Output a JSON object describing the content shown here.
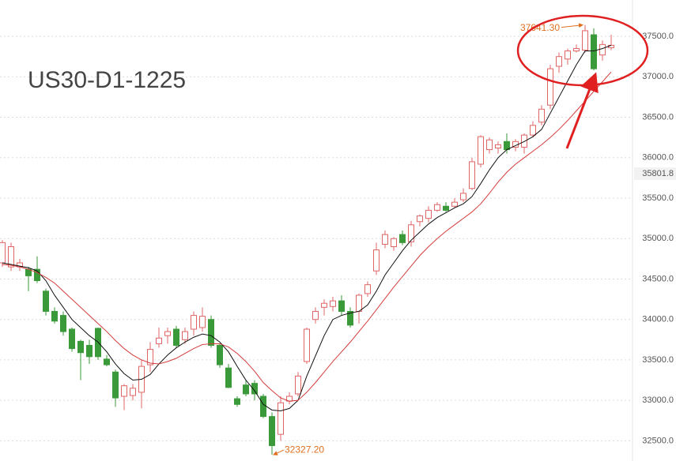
{
  "chart_data": {
    "type": "candlestick",
    "title": "US30-D1-1225",
    "ylim": [
      32250,
      37950
    ],
    "yticks": [
      {
        "value": 32500,
        "label": "32500.0"
      },
      {
        "value": 33000,
        "label": "33000.0"
      },
      {
        "value": 33500,
        "label": "33500.0"
      },
      {
        "value": 34000,
        "label": "34000.0"
      },
      {
        "value": 34500,
        "label": "34500.0"
      },
      {
        "value": 35000,
        "label": "35000.0"
      },
      {
        "value": 35500,
        "label": "35500.0"
      },
      {
        "value": 36000,
        "label": "36000.0"
      },
      {
        "value": 36500,
        "label": "36500.0"
      },
      {
        "value": 37000,
        "label": "37000.0"
      },
      {
        "value": 37500,
        "label": "37500.0"
      }
    ],
    "grid": true,
    "price_marker": {
      "value": 35801.8,
      "label": "35801.8"
    },
    "high_label": "37641.30",
    "low_label": "32327.20",
    "up_color": "#e06666",
    "down_color": "#3a9a3a",
    "candles": {
      "open": [
        34700,
        34650,
        34650,
        34620,
        34620,
        34350,
        34100,
        34050,
        33880,
        33730,
        33680,
        33890,
        33510,
        33350,
        33050,
        33060,
        33100,
        33440,
        33700,
        33800,
        33880,
        33750,
        33880,
        33900,
        34000,
        33680,
        33400,
        33020,
        33190,
        33210,
        33050,
        32800,
        32580,
        32990,
        33080,
        33480,
        34000,
        34150,
        34160,
        34230,
        34100,
        34100,
        34320,
        34600,
        34930,
        34900,
        35050,
        34960,
        35210,
        35250,
        35350,
        35400,
        35400,
        35480,
        35620,
        35920,
        36100,
        36120,
        36200,
        36130,
        36130,
        36280,
        36440,
        36650,
        37130,
        37220,
        37320,
        37330,
        37520,
        37270,
        37360
      ],
      "high": [
        34980,
        34950,
        34750,
        34650,
        34780,
        34380,
        34150,
        34100,
        33900,
        33750,
        33750,
        33900,
        33560,
        33380,
        33200,
        33200,
        33500,
        33720,
        33900,
        33900,
        33920,
        33900,
        34100,
        34150,
        34050,
        33700,
        33450,
        33050,
        33250,
        33250,
        33080,
        32850,
        33050,
        33100,
        33350,
        33900,
        34150,
        34250,
        34280,
        34300,
        34150,
        34320,
        34470,
        34950,
        35100,
        35020,
        35100,
        35220,
        35300,
        35400,
        35450,
        35450,
        35500,
        35620,
        36000,
        36280,
        36250,
        36200,
        36300,
        36230,
        36300,
        36450,
        36650,
        37150,
        37300,
        37350,
        37400,
        37641.3,
        37600,
        37450,
        37520
      ],
      "low": [
        34650,
        34600,
        34600,
        34350,
        34450,
        34050,
        33950,
        33800,
        33600,
        33250,
        33450,
        33500,
        33420,
        32920,
        32880,
        33000,
        32900,
        33350,
        33650,
        33700,
        33650,
        33700,
        33800,
        33850,
        33650,
        33400,
        33150,
        32920,
        33050,
        33000,
        32780,
        32327.2,
        32500,
        32950,
        33050,
        33450,
        33950,
        34050,
        34100,
        34050,
        33900,
        33950,
        34280,
        34550,
        34880,
        34850,
        34920,
        34900,
        35150,
        35200,
        35330,
        35330,
        35380,
        35450,
        35600,
        35880,
        36050,
        36050,
        36050,
        36080,
        36050,
        36250,
        36400,
        36600,
        37050,
        37150,
        37300,
        37300,
        37080,
        37200,
        37330
      ],
      "close": [
        34950,
        34900,
        34700,
        34540,
        34480,
        34100,
        33980,
        33850,
        33640,
        33590,
        33540,
        33540,
        33440,
        33030,
        33180,
        33150,
        33420,
        33630,
        33770,
        33850,
        33680,
        33850,
        34050,
        34040,
        33680,
        33440,
        33160,
        32950,
        33080,
        33080,
        32800,
        32440,
        32970,
        33050,
        33300,
        33880,
        34100,
        34200,
        34230,
        34100,
        33930,
        34300,
        34430,
        34860,
        35050,
        35000,
        34950,
        35170,
        35280,
        35350,
        35420,
        35350,
        35450,
        35560,
        35950,
        36260,
        36220,
        36160,
        36100,
        36200,
        36280,
        36400,
        36600,
        37100,
        37250,
        37320,
        37350,
        37570,
        37100,
        37400,
        37390
      ]
    },
    "lines": [
      {
        "color": "#111111",
        "values": [
          34700,
          34680,
          34660,
          34640,
          34600,
          34480,
          34300,
          34150,
          34000,
          33900,
          33800,
          33720,
          33600,
          33450,
          33330,
          33250,
          33260,
          33320,
          33450,
          33560,
          33650,
          33720,
          33780,
          33820,
          33800,
          33720,
          33600,
          33420,
          33250,
          33120,
          32950,
          32880,
          32870,
          32900,
          33000,
          33300,
          33550,
          33800,
          34000,
          34050,
          34080,
          34100,
          34180,
          34350,
          34550,
          34700,
          34850,
          34980,
          35080,
          35180,
          35260,
          35320,
          35380,
          35430,
          35520,
          35680,
          35850,
          36000,
          36100,
          36150,
          36200,
          36260,
          36350,
          36550,
          36750,
          36950,
          37150,
          37320,
          37320,
          37350,
          37390
        ]
      },
      {
        "color": "#d43c3c",
        "values": [
          34680,
          34670,
          34650,
          34620,
          34580,
          34520,
          34450,
          34350,
          34250,
          34150,
          34050,
          33950,
          33850,
          33740,
          33640,
          33560,
          33500,
          33460,
          33450,
          33480,
          33520,
          33580,
          33640,
          33690,
          33700,
          33700,
          33660,
          33580,
          33480,
          33360,
          33220,
          33120,
          33030,
          32990,
          33000,
          33100,
          33220,
          33350,
          33480,
          33600,
          33720,
          33850,
          33980,
          34120,
          34260,
          34400,
          34530,
          34660,
          34790,
          34900,
          35000,
          35090,
          35170,
          35250,
          35330,
          35430,
          35560,
          35700,
          35820,
          35920,
          36000,
          36080,
          36160,
          36250,
          36350,
          36460,
          36580,
          36700,
          36820,
          36940,
          37060
        ]
      }
    ]
  }
}
